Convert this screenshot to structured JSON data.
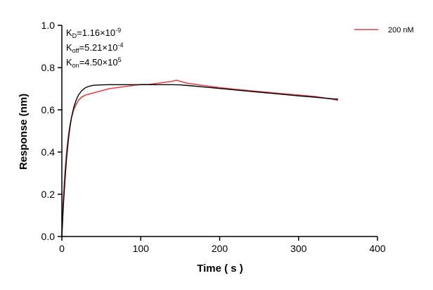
{
  "chart_data": {
    "type": "line",
    "xlabel": "Time ( s )",
    "ylabel": "Response (nm)",
    "xlim": [
      0,
      400
    ],
    "ylim": [
      0,
      1.0
    ],
    "x_ticks": [
      "0",
      "100",
      "200",
      "300",
      "400"
    ],
    "y_ticks": [
      "0.0",
      "0.2",
      "0.4",
      "0.6",
      "0.8",
      "1.0"
    ],
    "grid": false,
    "legend_position": "top-right",
    "annotations": {
      "kd": {
        "base": "K",
        "sub": "D",
        "value": "=1.16×10",
        "exp": "-9"
      },
      "koff": {
        "base": "K",
        "sub": "off",
        "value": "=5.21×10",
        "exp": "-4"
      },
      "kon": {
        "base": "K",
        "sub": "on",
        "value": "=4.50×10",
        "exp": "5"
      }
    },
    "series": [
      {
        "name": "200 nM",
        "color": "#e0404a",
        "x": [
          0,
          2,
          4,
          6,
          8,
          10,
          12,
          15,
          18,
          21,
          25,
          30,
          35,
          40,
          50,
          60,
          70,
          80,
          90,
          100,
          110,
          120,
          130,
          140,
          145,
          150,
          160,
          170,
          180,
          190,
          200,
          220,
          240,
          260,
          280,
          300,
          320,
          340,
          350
        ],
        "y": [
          0.0,
          0.19,
          0.31,
          0.4,
          0.47,
          0.52,
          0.56,
          0.6,
          0.625,
          0.645,
          0.66,
          0.67,
          0.675,
          0.68,
          0.69,
          0.7,
          0.705,
          0.71,
          0.715,
          0.72,
          0.72,
          0.725,
          0.73,
          0.735,
          0.74,
          0.735,
          0.725,
          0.72,
          0.715,
          0.71,
          0.705,
          0.697,
          0.69,
          0.683,
          0.676,
          0.67,
          0.663,
          0.652,
          0.645
        ]
      },
      {
        "name": "",
        "color": "#000000",
        "x": [
          0,
          2,
          4,
          6,
          8,
          10,
          12,
          15,
          18,
          21,
          25,
          30,
          35,
          40,
          50,
          60,
          70,
          80,
          100,
          120,
          140,
          150,
          160,
          180,
          200,
          220,
          240,
          260,
          280,
          300,
          320,
          340,
          350
        ],
        "y": [
          0.0,
          0.15,
          0.27,
          0.37,
          0.45,
          0.51,
          0.56,
          0.61,
          0.645,
          0.67,
          0.69,
          0.705,
          0.712,
          0.716,
          0.718,
          0.719,
          0.719,
          0.719,
          0.719,
          0.719,
          0.719,
          0.718,
          0.715,
          0.708,
          0.701,
          0.694,
          0.687,
          0.68,
          0.673,
          0.666,
          0.66,
          0.653,
          0.65
        ]
      }
    ]
  }
}
